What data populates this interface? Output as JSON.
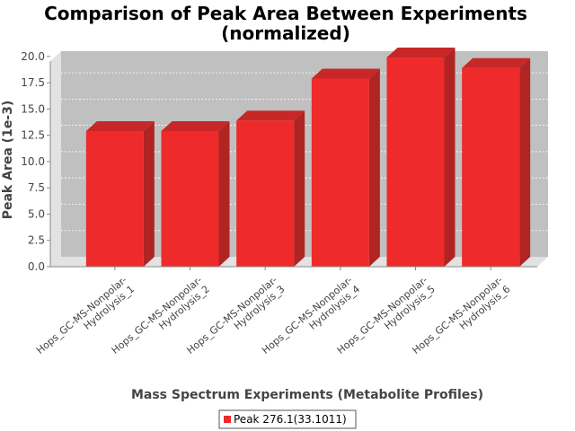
{
  "chart_data": {
    "type": "bar",
    "title": "Comparison of Peak Area Between Experiments",
    "subtitle": "(normalized)",
    "xlabel": "Mass Spectrum Experiments (Metabolite Profiles)",
    "ylabel": "Peak Area (1e-3)",
    "categories": [
      [
        "Hops_GC-MS-Nonpolar-",
        "Hydrolysis_1"
      ],
      [
        "Hops_GC-MS-Nonpolar-",
        "Hydrolysis_2"
      ],
      [
        "Hops_GC-MS-Nonpolar-",
        "Hydrolysis_3"
      ],
      [
        "Hops_GC-MS-Nonpolar-",
        "Hydrolysis_4"
      ],
      [
        "Hops_GC-MS-Nonpolar-",
        "Hydrolysis_5"
      ],
      [
        "Hops_GC-MS-Nonpolar-",
        "Hydrolysis_6"
      ]
    ],
    "series": [
      {
        "name": "Peak 276.1(33.1011)",
        "values": [
          12.9,
          12.9,
          13.9,
          17.9,
          19.9,
          18.9
        ],
        "color": "#ee2a2a"
      }
    ],
    "yticks": [
      "0.0",
      "2.5",
      "5.0",
      "7.5",
      "10.0",
      "12.5",
      "15.0",
      "17.5",
      "20.0"
    ],
    "ylim": [
      0,
      20.5
    ],
    "grid": true,
    "legend_position": "bottom",
    "colors": {
      "plot_bg": "#c0c0c0",
      "wall": "#e2e2e2",
      "bar": "#ee2a2a",
      "bar_side": "#b02424",
      "bar_top": "#c82727"
    }
  }
}
